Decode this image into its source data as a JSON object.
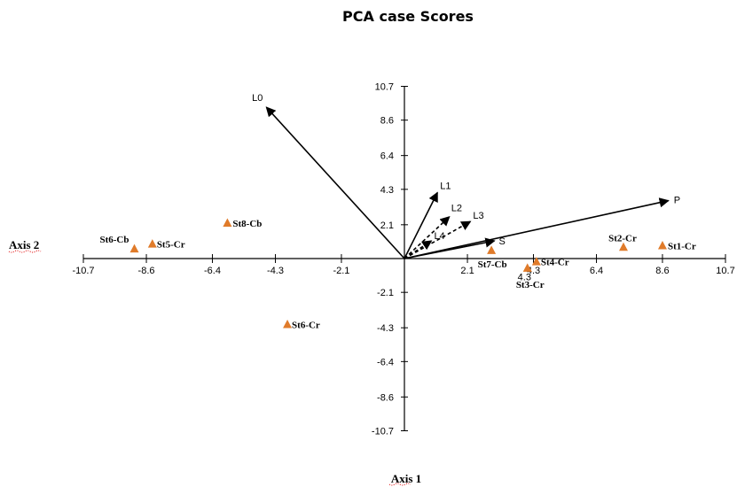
{
  "chart_data": {
    "type": "scatter",
    "title": "PCA case Scores",
    "xlabel": "Axis 1",
    "ylabel": "Axis 2",
    "xlim": [
      -10.7,
      10.7
    ],
    "ylim": [
      -10.7,
      10.7
    ],
    "x_ticks": [
      "-10.7",
      "-8.6",
      "-6.4",
      "-4.3",
      "-2.1",
      "2.1",
      "4.3",
      "6.4",
      "8.6",
      "10.7"
    ],
    "y_ticks": [
      "10.7",
      "8.6",
      "6.4",
      "4.3",
      "2.1",
      "-2.1",
      "-4.3",
      "-6.4",
      "-8.6",
      "-10.7"
    ],
    "marker_color": "#e07b2a",
    "vector_color": "#000000",
    "points": [
      {
        "label": "St1-Cr",
        "x": 8.6,
        "y": 0.8
      },
      {
        "label": "St2-Cr",
        "x": 7.3,
        "y": 0.7
      },
      {
        "label": "St3-Cr",
        "x": 4.1,
        "y": -0.6
      },
      {
        "label": "St4-Cr",
        "x": 4.4,
        "y": -0.2
      },
      {
        "label": "St5-Cr",
        "x": -8.4,
        "y": 0.9
      },
      {
        "label": "St6-Cb",
        "x": -9.0,
        "y": 0.6
      },
      {
        "label": "St6-Cr",
        "x": -3.9,
        "y": -4.1
      },
      {
        "label": "St7-Cb",
        "x": 2.9,
        "y": 0.5
      },
      {
        "label": "St8-Cb",
        "x": -5.9,
        "y": 2.2
      }
    ],
    "vectors": [
      {
        "label": "L0",
        "x": -4.6,
        "y": 9.4,
        "dashed": false
      },
      {
        "label": "L1",
        "x": 1.1,
        "y": 4.1,
        "dashed": false
      },
      {
        "label": "L2",
        "x": 1.5,
        "y": 2.6,
        "dashed": true
      },
      {
        "label": "L3",
        "x": 2.2,
        "y": 2.3,
        "dashed": true
      },
      {
        "label": "L4",
        "x": 0.9,
        "y": 1.1,
        "dashed": true
      },
      {
        "label": "S",
        "x": 3.0,
        "y": 1.1,
        "dashed": false
      },
      {
        "label": "P",
        "x": 8.8,
        "y": 3.6,
        "dashed": false
      }
    ],
    "extra_labels": [
      {
        "text": "4.3",
        "x": 4.0,
        "y": -0.7
      }
    ]
  }
}
